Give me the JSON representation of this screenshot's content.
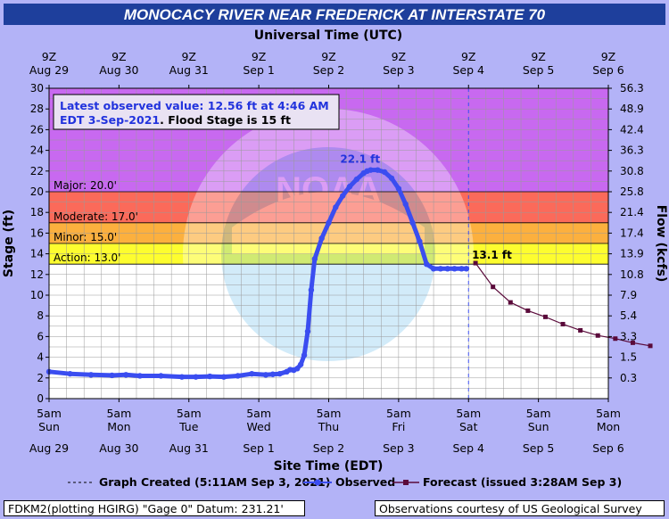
{
  "chart_data": {
    "type": "line",
    "title": "MONOCACY RIVER NEAR FREDERICK AT INTERSTATE 70",
    "top_axis_title": "Universal Time (UTC)",
    "xlabel": "Site Time (EDT)",
    "ylabel_left": "Stage (ft)",
    "ylabel_right": "Flow (kcfs)",
    "ylim": [
      0,
      30
    ],
    "left_ticks": [
      "0",
      "2",
      "4",
      "6",
      "8",
      "10",
      "12",
      "14",
      "16",
      "18",
      "20",
      "22",
      "24",
      "26",
      "28",
      "30"
    ],
    "right_ticks": [
      {
        "stage": 2,
        "label": "0.3"
      },
      {
        "stage": 4,
        "label": "1.5"
      },
      {
        "stage": 6,
        "label": "3.3"
      },
      {
        "stage": 8,
        "label": "5.4"
      },
      {
        "stage": 10,
        "label": "7.9"
      },
      {
        "stage": 12,
        "label": "10.8"
      },
      {
        "stage": 14,
        "label": "13.9"
      },
      {
        "stage": 16,
        "label": "17.4"
      },
      {
        "stage": 18,
        "label": "21.4"
      },
      {
        "stage": 20,
        "label": "25.8"
      },
      {
        "stage": 22,
        "label": "30.8"
      },
      {
        "stage": 24,
        "label": "36.3"
      },
      {
        "stage": 26,
        "label": "42.4"
      },
      {
        "stage": 28,
        "label": "48.9"
      },
      {
        "stage": 30,
        "label": "56.3"
      }
    ],
    "top_ticks": [
      {
        "time": "9Z",
        "date": "Aug 29"
      },
      {
        "time": "9Z",
        "date": "Aug 30"
      },
      {
        "time": "9Z",
        "date": "Aug 31"
      },
      {
        "time": "9Z",
        "date": "Sep 1"
      },
      {
        "time": "9Z",
        "date": "Sep 2"
      },
      {
        "time": "9Z",
        "date": "Sep 3"
      },
      {
        "time": "9Z",
        "date": "Sep 4"
      },
      {
        "time": "9Z",
        "date": "Sep 5"
      },
      {
        "time": "9Z",
        "date": "Sep 6"
      }
    ],
    "bottom_ticks": [
      {
        "time": "5am",
        "day": "Sun",
        "date": "Aug 29"
      },
      {
        "time": "5am",
        "day": "Mon",
        "date": "Aug 30"
      },
      {
        "time": "5am",
        "day": "Tue",
        "date": "Aug 31"
      },
      {
        "time": "5am",
        "day": "Wed",
        "date": "Sep 1"
      },
      {
        "time": "5am",
        "day": "Thu",
        "date": "Sep 2"
      },
      {
        "time": "5am",
        "day": "Fri",
        "date": "Sep 3"
      },
      {
        "time": "5am",
        "day": "Sat",
        "date": "Sep 4"
      },
      {
        "time": "5am",
        "day": "Sun",
        "date": "Sep 5"
      },
      {
        "time": "5am",
        "day": "Mon",
        "date": "Sep 6"
      }
    ],
    "flood_categories": [
      {
        "name": "Action",
        "label": "Action: 13.0'",
        "from": 13,
        "to": 15,
        "color": "#fdfd2f"
      },
      {
        "name": "Minor",
        "label": "Minor: 15.0'",
        "from": 15,
        "to": 17,
        "color": "#fcb03e"
      },
      {
        "name": "Moderate",
        "label": "Moderate: 17.0'",
        "from": 17,
        "to": 20,
        "color": "#fb6a5a"
      },
      {
        "name": "Major",
        "label": "Major: 20.0'",
        "from": 20,
        "to": 30,
        "color": "#c869f0"
      }
    ],
    "info_box": {
      "line1": "Latest observed value: 12.56 ft at 4:46 AM",
      "line2_blue": "EDT 3-Sep-2021",
      "line2_black": ". Flood Stage is 15 ft"
    },
    "annotations": {
      "peak": {
        "text": "22.1 ft",
        "day": 4.45,
        "stage": 22.1
      },
      "forecast_start": {
        "text": "13.1 ft",
        "day": 6.1,
        "stage": 13.1
      }
    },
    "graph_created_day": 6.0,
    "observed": {
      "name": "Observed",
      "color": "#3a4df0",
      "x_days_since_first_tick": [
        0.0,
        0.3,
        0.6,
        0.9,
        1.1,
        1.3,
        1.6,
        1.9,
        2.1,
        2.3,
        2.5,
        2.7,
        2.9,
        3.1,
        3.2,
        3.3,
        3.4,
        3.45,
        3.5,
        3.55,
        3.6,
        3.65,
        3.7,
        3.75,
        3.8,
        3.9,
        4.0,
        4.1,
        4.2,
        4.3,
        4.4,
        4.5,
        4.55,
        4.6,
        4.7,
        4.8,
        4.9,
        5.0,
        5.1,
        5.2,
        5.3,
        5.4,
        5.5,
        5.6,
        5.7,
        5.8,
        5.9,
        5.97
      ],
      "y": [
        2.6,
        2.4,
        2.3,
        2.25,
        2.3,
        2.2,
        2.2,
        2.1,
        2.1,
        2.15,
        2.1,
        2.2,
        2.4,
        2.3,
        2.35,
        2.4,
        2.6,
        2.8,
        2.75,
        2.9,
        3.3,
        4.2,
        6.5,
        10.5,
        13.5,
        15.5,
        17.0,
        18.5,
        19.6,
        20.5,
        21.2,
        21.8,
        22.0,
        22.1,
        22.1,
        21.9,
        21.3,
        20.3,
        18.8,
        17.0,
        15.2,
        13.0,
        12.56,
        12.56,
        12.56,
        12.56,
        12.56,
        12.56
      ]
    },
    "forecast": {
      "name": "Forecast (issued 3:28AM Sep 3)",
      "color": "#5a0a3a",
      "x_days_since_first_tick": [
        6.1,
        6.35,
        6.6,
        6.85,
        7.1,
        7.35,
        7.6,
        7.85,
        8.1,
        8.35,
        8.6
      ],
      "y": [
        13.1,
        10.8,
        9.3,
        8.5,
        7.9,
        7.2,
        6.6,
        6.1,
        5.8,
        5.4,
        5.1
      ]
    },
    "legend_graph_created": "Graph Created (5:11AM Sep 3, 2021)"
  },
  "footer": {
    "left": "FDKM2(plotting HGIRG) \"Gage 0\" Datum: 231.21'",
    "right": "Observations courtesy of US Geological Survey"
  },
  "colors": {
    "title_bar": "#1e3f9c",
    "background": "#b3b3f7",
    "grid": "#9a9a9a"
  }
}
